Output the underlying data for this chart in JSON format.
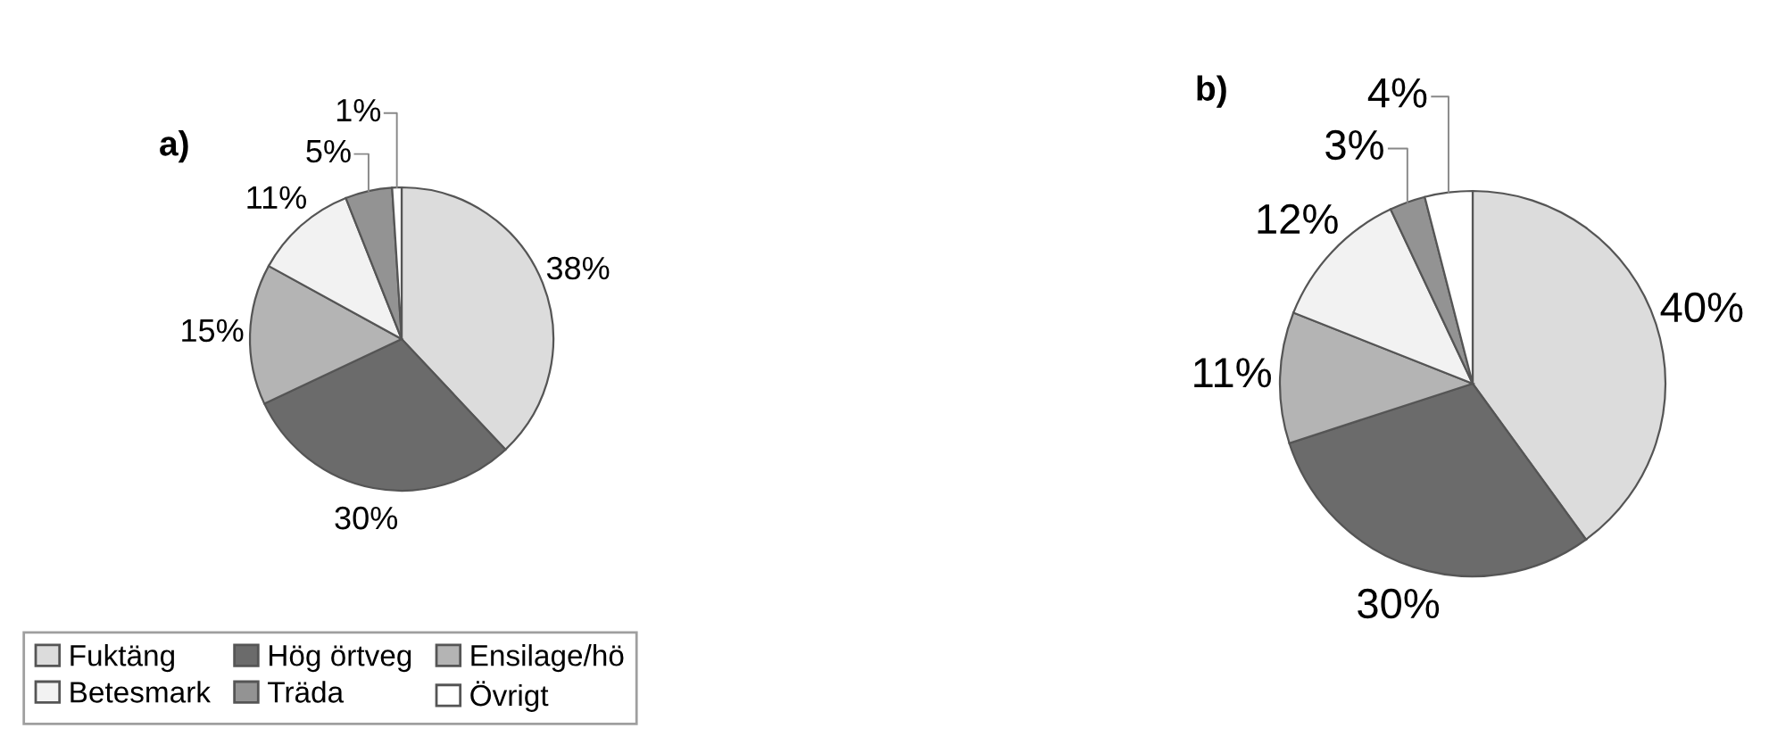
{
  "chart_data": [
    {
      "type": "pie",
      "title": "a)",
      "categories": [
        "Fuktäng",
        "Hög örtveg",
        "Ensilage/hö",
        "Betesmark",
        "Träda",
        "Övrigt"
      ],
      "values": [
        38,
        30,
        15,
        11,
        5,
        1
      ],
      "value_labels": [
        "38%",
        "30%",
        "15%",
        "11%",
        "5%",
        "1%"
      ],
      "colors": [
        "#dcdcdc",
        "#6b6b6b",
        "#b4b4b4",
        "#f2f2f2",
        "#939393",
        "#ffffff"
      ],
      "legend": "bottom left"
    },
    {
      "type": "pie",
      "title": "b)",
      "categories": [
        null,
        null,
        null,
        null,
        null,
        null
      ],
      "values": [
        40,
        30,
        11,
        12,
        3,
        4
      ],
      "value_labels": [
        "40%",
        "30%",
        "11%",
        "12%",
        "3%",
        "4%"
      ],
      "colors": [
        "#dcdcdc",
        "#6b6b6b",
        "#b4b4b4",
        "#f2f2f2",
        "#939393",
        "#ffffff"
      ]
    }
  ]
}
